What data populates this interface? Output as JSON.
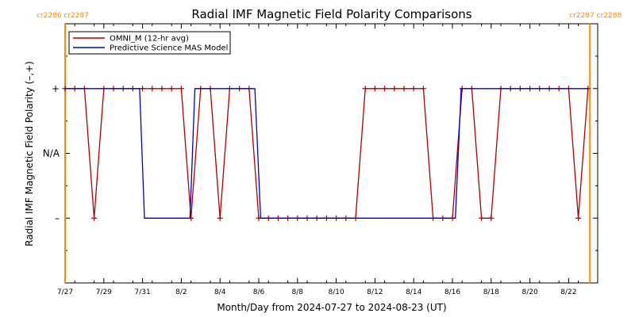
{
  "chart_data": {
    "type": "line",
    "title": "Radial IMF Magnetic Field Polarity Comparisons",
    "xlabel": "Month/Day from 2024-07-27 to 2024-08-23 (UT)",
    "ylabel": "Radial IMF Magnetic Field Polarity (–,+)",
    "xlim": [
      0,
      27.5
    ],
    "ylim": [
      -2,
      2
    ],
    "grid": false,
    "legend_position": "top-left",
    "x_ticks": [
      {
        "x": 0,
        "label": "7/27"
      },
      {
        "x": 2,
        "label": "7/29"
      },
      {
        "x": 4,
        "label": "7/31"
      },
      {
        "x": 6,
        "label": "8/2"
      },
      {
        "x": 8,
        "label": "8/4"
      },
      {
        "x": 10,
        "label": "8/6"
      },
      {
        "x": 12,
        "label": "8/8"
      },
      {
        "x": 14,
        "label": "8/10"
      },
      {
        "x": 16,
        "label": "8/12"
      },
      {
        "x": 18,
        "label": "8/14"
      },
      {
        "x": 20,
        "label": "8/16"
      },
      {
        "x": 22,
        "label": "8/18"
      },
      {
        "x": 24,
        "label": "8/20"
      },
      {
        "x": 26,
        "label": "8/22"
      }
    ],
    "y_ticks": [
      {
        "y": 1,
        "label": "+"
      },
      {
        "y": 0,
        "label": "N/A"
      },
      {
        "y": -1,
        "label": "–"
      }
    ],
    "rotations": [
      {
        "x": 0,
        "left": "cr2286",
        "right": "cr2287",
        "align": "left"
      },
      {
        "x": 27.1,
        "left": "cr2287",
        "right": "cr2288",
        "align": "right"
      }
    ],
    "series": [
      {
        "name": "OMNI_M (12-hr avg)",
        "color": "#b00000",
        "marker": "plus",
        "points": [
          [
            0.0,
            1
          ],
          [
            0.5,
            1
          ],
          [
            1.0,
            1
          ],
          [
            1.5,
            -1
          ],
          [
            2.0,
            1
          ],
          [
            2.5,
            1
          ],
          [
            3.0,
            1
          ],
          [
            3.5,
            1
          ],
          [
            4.0,
            1
          ],
          [
            4.5,
            1
          ],
          [
            5.0,
            1
          ],
          [
            5.5,
            1
          ],
          [
            6.0,
            1
          ],
          [
            6.5,
            -1
          ],
          [
            7.0,
            1
          ],
          [
            7.5,
            1
          ],
          [
            8.0,
            -1
          ],
          [
            8.5,
            1
          ],
          [
            9.0,
            1
          ],
          [
            9.5,
            1
          ],
          [
            10.0,
            -1
          ],
          [
            10.5,
            -1
          ],
          [
            11.0,
            -1
          ],
          [
            11.5,
            -1
          ],
          [
            12.0,
            -1
          ],
          [
            12.5,
            -1
          ],
          [
            13.0,
            -1
          ],
          [
            13.5,
            -1
          ],
          [
            14.0,
            -1
          ],
          [
            14.5,
            -1
          ],
          [
            15.0,
            -1
          ],
          [
            15.5,
            1
          ],
          [
            16.0,
            1
          ],
          [
            16.5,
            1
          ],
          [
            17.0,
            1
          ],
          [
            17.5,
            1
          ],
          [
            18.0,
            1
          ],
          [
            18.5,
            1
          ],
          [
            19.0,
            -1
          ],
          [
            19.5,
            -1
          ],
          [
            20.0,
            -1
          ],
          [
            20.5,
            1
          ],
          [
            21.0,
            1
          ],
          [
            21.5,
            -1
          ],
          [
            22.0,
            -1
          ],
          [
            22.5,
            1
          ],
          [
            23.0,
            1
          ],
          [
            23.5,
            1
          ],
          [
            24.0,
            1
          ],
          [
            24.5,
            1
          ],
          [
            25.0,
            1
          ],
          [
            25.5,
            1
          ],
          [
            26.0,
            1
          ],
          [
            26.5,
            -1
          ],
          [
            27.0,
            1
          ]
        ]
      },
      {
        "name": "Predictive Science MAS Model",
        "color": "#0000c8",
        "marker": "none",
        "points": [
          [
            0.0,
            1
          ],
          [
            3.85,
            1
          ],
          [
            4.1,
            -1
          ],
          [
            6.45,
            -1
          ],
          [
            6.7,
            1
          ],
          [
            9.8,
            1
          ],
          [
            10.1,
            -1
          ],
          [
            20.15,
            -1
          ],
          [
            20.45,
            1
          ],
          [
            27.0,
            1
          ]
        ]
      }
    ]
  }
}
